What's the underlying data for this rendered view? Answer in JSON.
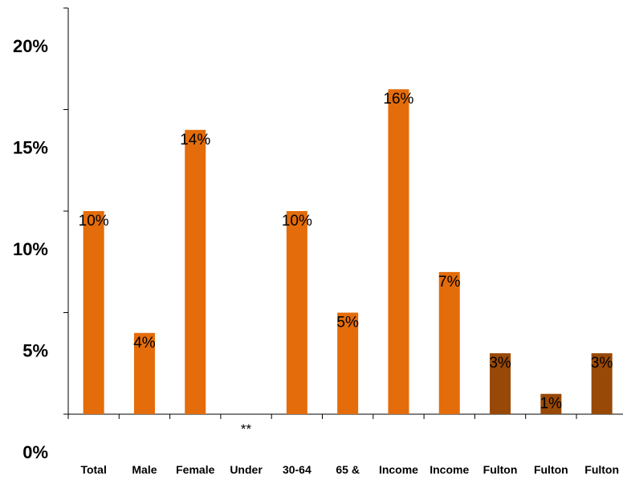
{
  "chart_data": {
    "type": "bar",
    "title": "",
    "xlabel": "",
    "ylabel": "",
    "ylim": [
      0,
      20
    ],
    "yticks": [
      "0%",
      "5%",
      "10%",
      "15%",
      "20%"
    ],
    "categories": [
      "Total",
      "Male",
      "Female",
      "Under",
      "30-64",
      "65 &",
      "Income",
      "Income",
      "Fulton",
      "Fulton",
      "Fulton"
    ],
    "values": [
      10,
      4,
      14,
      null,
      10,
      5,
      16,
      7,
      3,
      1,
      3
    ],
    "data_labels": [
      "10%",
      "4%",
      "14%",
      "",
      "10%",
      "5%",
      "16%",
      "7%",
      "3%",
      "1%",
      "3%"
    ],
    "missing_marker": "**",
    "colors": [
      "#E46C0A",
      "#E46C0A",
      "#E46C0A",
      "#E46C0A",
      "#E46C0A",
      "#E46C0A",
      "#E46C0A",
      "#E46C0A",
      "#984807",
      "#984807",
      "#984807"
    ],
    "grid": false,
    "legend": "none"
  }
}
